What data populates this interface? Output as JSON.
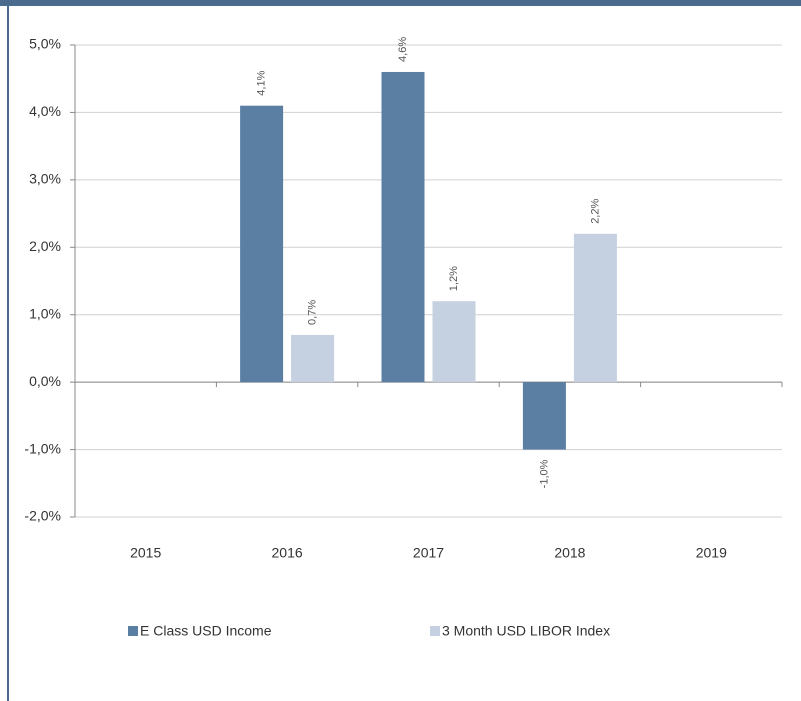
{
  "chart_data": {
    "type": "bar",
    "categories": [
      "2015",
      "2016",
      "2017",
      "2018",
      "2019"
    ],
    "series": [
      {
        "name": "E Class USD Income",
        "color": "#5b7fa3",
        "values": [
          null,
          4.1,
          4.6,
          -1.0,
          null
        ],
        "value_labels": [
          null,
          "4,1%",
          "4,6%",
          "-1,0%",
          null
        ]
      },
      {
        "name": "3 Month USD LIBOR Index",
        "color": "#c5d0e1",
        "values": [
          null,
          0.7,
          1.2,
          2.2,
          null
        ],
        "value_labels": [
          null,
          "0,7%",
          "1,2%",
          "2,2%",
          null
        ]
      }
    ],
    "ylim": [
      -2,
      5
    ],
    "yticks": [
      {
        "value": -2,
        "label": "-2,0%"
      },
      {
        "value": -1,
        "label": "-1,0%"
      },
      {
        "value": 0,
        "label": "0,0%"
      },
      {
        "value": 1,
        "label": "1,0%"
      },
      {
        "value": 2,
        "label": "2,0%"
      },
      {
        "value": 3,
        "label": "3,0%"
      },
      {
        "value": 4,
        "label": "4,0%"
      },
      {
        "value": 5,
        "label": "5,0%"
      }
    ],
    "grid": true,
    "legend": "bottom"
  }
}
